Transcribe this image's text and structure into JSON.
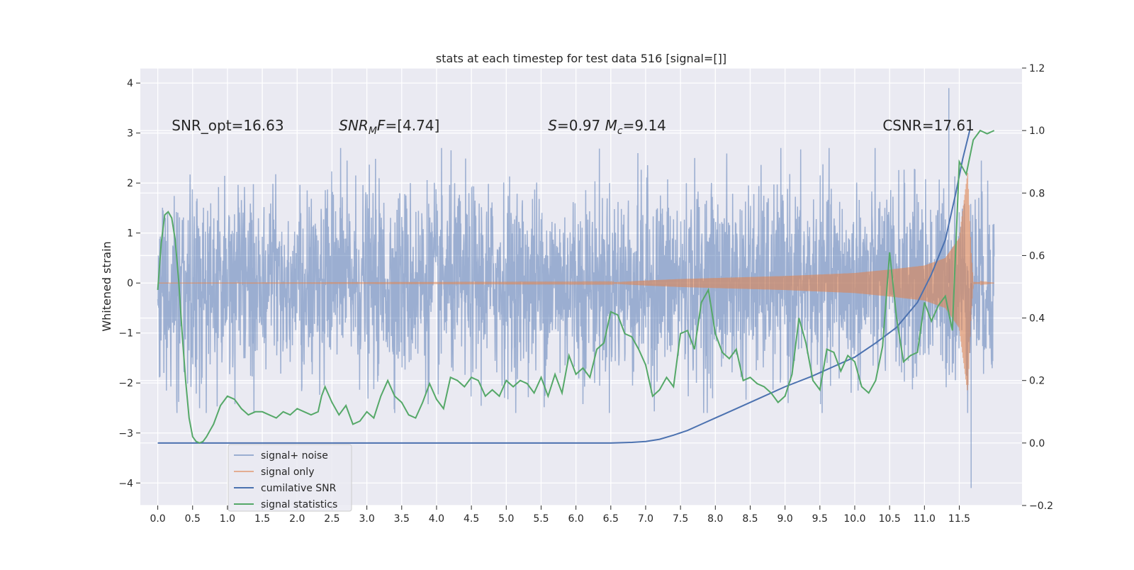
{
  "chart_data": {
    "type": "line",
    "title": "stats at each timestep for test data 516 [signal=[]]",
    "ylabel": "Whitened strain",
    "xlabel": "",
    "xlim": [
      -0.25,
      12.4
    ],
    "ylim": [
      -4.45,
      4.3
    ],
    "y2lim": [
      -0.2,
      1.2
    ],
    "x_ticks": [
      0.0,
      0.5,
      1.0,
      1.5,
      2.0,
      2.5,
      3.0,
      3.5,
      4.0,
      4.5,
      5.0,
      5.5,
      6.0,
      6.5,
      7.0,
      7.5,
      8.0,
      8.5,
      9.0,
      9.5,
      10.0,
      10.5,
      11.0,
      11.5
    ],
    "x_tick_labels": [
      "0.0",
      "0.5",
      "1.0",
      "1.5",
      "2.0",
      "2.5",
      "3.0",
      "3.5",
      "4.0",
      "4.5",
      "5.0",
      "5.5",
      "6.0",
      "6.5",
      "7.0",
      "7.5",
      "8.0",
      "8.5",
      "9.0",
      "9.5",
      "10.0",
      "10.5",
      "11.0",
      "11.5"
    ],
    "y_ticks": [
      -4,
      -3,
      -2,
      -1,
      0,
      1,
      2,
      3,
      4
    ],
    "y_tick_labels": [
      "−4",
      "−3",
      "−2",
      "−1",
      "0",
      "1",
      "2",
      "3",
      "4"
    ],
    "y2_ticks": [
      -0.2,
      0.0,
      0.2,
      0.4,
      0.6,
      0.8,
      1.0,
      1.2
    ],
    "y2_tick_labels": [
      "−0.2",
      "0.0",
      "0.2",
      "0.4",
      "0.6",
      "0.8",
      "1.0",
      "1.2"
    ],
    "grid": true,
    "legend_position": "lower-left",
    "annotations": [
      {
        "text": "SNR_opt=16.63",
        "x": 0.2,
        "y": 3.05
      },
      {
        "text": "SNR_M F=[4.74]",
        "x": 2.6,
        "y": 3.05,
        "italic_parts": [
          "SNR",
          "F"
        ],
        "subscript": "M"
      },
      {
        "text": "S=0.97   M_c=9.14",
        "x": 5.6,
        "y": 3.05
      },
      {
        "text": "CSNR=17.61",
        "x": 10.4,
        "y": 3.05
      }
    ],
    "colors": {
      "background": "#eaeaf2",
      "grid": "#ffffff",
      "signal_noise": "#4c72b0",
      "signal_only": "#dd8452",
      "cumulative_snr": "#4c72b0",
      "signal_statistics": "#55a868"
    },
    "series": [
      {
        "name": "signal+ noise",
        "axis": "left",
        "color": "#4c72b0",
        "alpha": 0.5,
        "kind": "noise",
        "x_range": [
          0.0,
          12.0
        ],
        "approx_envelope": [
          -2.2,
          2.6
        ],
        "peak_points": [
          {
            "x": 11.35,
            "y": 3.9
          },
          {
            "x": 11.67,
            "y": -4.1
          }
        ]
      },
      {
        "name": "signal only",
        "axis": "left",
        "color": "#dd8452",
        "alpha": 0.6,
        "kind": "chirp",
        "envelope": {
          "x": [
            0.0,
            6.5,
            7.0,
            7.5,
            8.0,
            8.5,
            9.0,
            9.5,
            10.0,
            10.5,
            11.0,
            11.3,
            11.5,
            11.62,
            11.67,
            11.7,
            12.0
          ],
          "amp": [
            0.0,
            0.01,
            0.05,
            0.08,
            0.1,
            0.12,
            0.14,
            0.17,
            0.2,
            0.27,
            0.35,
            0.5,
            0.9,
            2.2,
            0.6,
            0.02,
            0.0
          ]
        }
      },
      {
        "name": "cumilative SNR",
        "axis": "right",
        "color": "#4c72b0",
        "x": [
          0.0,
          6.5,
          6.8,
          7.0,
          7.2,
          7.4,
          7.6,
          7.8,
          8.0,
          8.3,
          8.6,
          9.0,
          9.4,
          9.8,
          10.0,
          10.3,
          10.6,
          10.9,
          11.1,
          11.3,
          11.45,
          11.55,
          11.65
        ],
        "values": [
          0.0,
          0.0,
          0.002,
          0.005,
          0.012,
          0.025,
          0.04,
          0.06,
          0.08,
          0.11,
          0.14,
          0.18,
          0.215,
          0.255,
          0.275,
          0.32,
          0.37,
          0.45,
          0.54,
          0.65,
          0.8,
          0.91,
          1.0
        ]
      },
      {
        "name": "signal statistics",
        "axis": "right",
        "color": "#55a868",
        "x": [
          0.0,
          0.05,
          0.1,
          0.15,
          0.2,
          0.25,
          0.3,
          0.35,
          0.4,
          0.45,
          0.5,
          0.55,
          0.6,
          0.65,
          0.7,
          0.75,
          0.8,
          0.85,
          0.9,
          1.0,
          1.1,
          1.2,
          1.3,
          1.4,
          1.5,
          1.6,
          1.7,
          1.8,
          1.9,
          2.0,
          2.1,
          2.2,
          2.3,
          2.35,
          2.4,
          2.5,
          2.6,
          2.7,
          2.8,
          2.9,
          3.0,
          3.1,
          3.2,
          3.3,
          3.4,
          3.5,
          3.6,
          3.7,
          3.8,
          3.9,
          4.0,
          4.1,
          4.2,
          4.3,
          4.4,
          4.5,
          4.6,
          4.7,
          4.8,
          4.9,
          5.0,
          5.1,
          5.2,
          5.3,
          5.4,
          5.5,
          5.6,
          5.7,
          5.8,
          5.9,
          6.0,
          6.1,
          6.2,
          6.3,
          6.4,
          6.5,
          6.6,
          6.7,
          6.8,
          6.9,
          7.0,
          7.1,
          7.2,
          7.3,
          7.4,
          7.5,
          7.6,
          7.7,
          7.8,
          7.9,
          8.0,
          8.1,
          8.2,
          8.3,
          8.4,
          8.5,
          8.6,
          8.7,
          8.8,
          8.9,
          9.0,
          9.1,
          9.2,
          9.3,
          9.4,
          9.5,
          9.6,
          9.7,
          9.8,
          9.9,
          10.0,
          10.1,
          10.2,
          10.3,
          10.4,
          10.5,
          10.6,
          10.7,
          10.8,
          10.9,
          11.0,
          11.1,
          11.2,
          11.3,
          11.4,
          11.5,
          11.6,
          11.7,
          11.8,
          11.9,
          12.0
        ],
        "values": [
          0.49,
          0.64,
          0.73,
          0.74,
          0.72,
          0.65,
          0.52,
          0.35,
          0.2,
          0.08,
          0.02,
          0.005,
          0.0,
          0.005,
          0.02,
          0.04,
          0.06,
          0.09,
          0.12,
          0.15,
          0.14,
          0.11,
          0.09,
          0.1,
          0.1,
          0.09,
          0.08,
          0.1,
          0.09,
          0.11,
          0.1,
          0.09,
          0.1,
          0.15,
          0.18,
          0.13,
          0.09,
          0.12,
          0.06,
          0.07,
          0.1,
          0.08,
          0.15,
          0.2,
          0.15,
          0.13,
          0.09,
          0.08,
          0.13,
          0.19,
          0.14,
          0.11,
          0.21,
          0.2,
          0.18,
          0.21,
          0.2,
          0.15,
          0.17,
          0.15,
          0.2,
          0.18,
          0.2,
          0.19,
          0.16,
          0.21,
          0.15,
          0.22,
          0.16,
          0.28,
          0.22,
          0.24,
          0.21,
          0.3,
          0.32,
          0.42,
          0.41,
          0.35,
          0.34,
          0.3,
          0.25,
          0.15,
          0.17,
          0.21,
          0.18,
          0.35,
          0.36,
          0.3,
          0.45,
          0.49,
          0.35,
          0.29,
          0.27,
          0.3,
          0.2,
          0.21,
          0.19,
          0.18,
          0.16,
          0.13,
          0.15,
          0.22,
          0.4,
          0.32,
          0.2,
          0.17,
          0.3,
          0.29,
          0.23,
          0.28,
          0.26,
          0.18,
          0.16,
          0.2,
          0.31,
          0.61,
          0.4,
          0.26,
          0.28,
          0.29,
          0.45,
          0.39,
          0.44,
          0.47,
          0.36,
          0.9,
          0.86,
          0.97,
          1.0,
          0.99,
          1.0
        ]
      }
    ]
  }
}
